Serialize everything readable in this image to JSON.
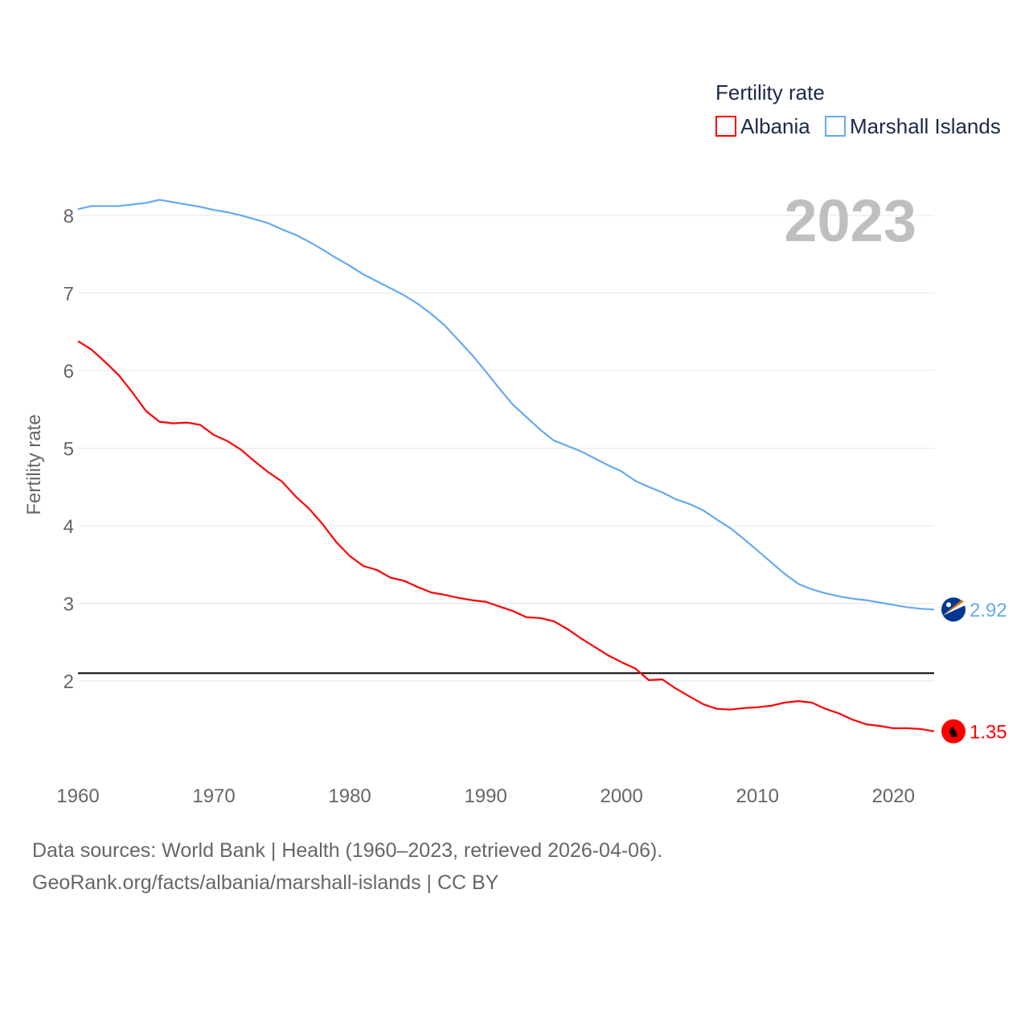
{
  "chart_data": {
    "type": "line",
    "title": "",
    "ylabel": "Fertility rate",
    "xlabel": "",
    "xlim": [
      1960,
      2023
    ],
    "ylim": [
      1,
      8.6
    ],
    "yticks": [
      2,
      3,
      4,
      5,
      6,
      7,
      8
    ],
    "xticks": [
      1960,
      1970,
      1980,
      1990,
      2000,
      2010,
      2020
    ],
    "grid": true,
    "year_label": "2023",
    "legend": {
      "title": "Fertility rate",
      "position": "top-right"
    },
    "reference_line": 2.1,
    "x": [
      1960,
      1961,
      1962,
      1963,
      1964,
      1965,
      1966,
      1967,
      1968,
      1969,
      1970,
      1971,
      1972,
      1973,
      1974,
      1975,
      1976,
      1977,
      1978,
      1979,
      1980,
      1981,
      1982,
      1983,
      1984,
      1985,
      1986,
      1987,
      1988,
      1989,
      1990,
      1991,
      1992,
      1993,
      1994,
      1995,
      1996,
      1997,
      1998,
      1999,
      2000,
      2001,
      2002,
      2003,
      2004,
      2005,
      2006,
      2007,
      2008,
      2009,
      2010,
      2011,
      2012,
      2013,
      2014,
      2015,
      2016,
      2017,
      2018,
      2019,
      2020,
      2021,
      2022,
      2023
    ],
    "series": [
      {
        "name": "Albania",
        "color": "#ff0000",
        "end_label": "1.35",
        "values": [
          6.38,
          6.27,
          6.11,
          5.94,
          5.72,
          5.48,
          5.34,
          5.32,
          5.33,
          5.3,
          5.17,
          5.09,
          4.98,
          4.83,
          4.69,
          4.57,
          4.38,
          4.22,
          4.02,
          3.79,
          3.61,
          3.48,
          3.43,
          3.33,
          3.29,
          3.21,
          3.14,
          3.11,
          3.07,
          3.04,
          3.02,
          2.96,
          2.9,
          2.82,
          2.81,
          2.77,
          2.67,
          2.55,
          2.44,
          2.33,
          2.24,
          2.16,
          2.01,
          2.02,
          1.9,
          1.8,
          1.7,
          1.64,
          1.63,
          1.65,
          1.66,
          1.68,
          1.72,
          1.74,
          1.72,
          1.64,
          1.58,
          1.5,
          1.44,
          1.42,
          1.39,
          1.39,
          1.38,
          1.35
        ]
      },
      {
        "name": "Marshall Islands",
        "color": "#66aaee",
        "end_label": "2.92",
        "values": [
          8.08,
          8.12,
          8.12,
          8.12,
          8.14,
          8.16,
          8.2,
          8.17,
          8.14,
          8.11,
          8.07,
          8.04,
          8.0,
          7.95,
          7.9,
          7.82,
          7.75,
          7.66,
          7.56,
          7.45,
          7.35,
          7.24,
          7.15,
          7.06,
          6.97,
          6.86,
          6.73,
          6.58,
          6.39,
          6.2,
          5.99,
          5.77,
          5.56,
          5.4,
          5.24,
          5.1,
          5.03,
          4.96,
          4.87,
          4.78,
          4.7,
          4.58,
          4.5,
          4.43,
          4.34,
          4.28,
          4.2,
          4.08,
          3.97,
          3.83,
          3.68,
          3.53,
          3.38,
          3.25,
          3.18,
          3.13,
          3.09,
          3.06,
          3.04,
          3.01,
          2.98,
          2.95,
          2.93,
          2.92
        ]
      }
    ]
  },
  "footer": {
    "line1": "Data sources: World Bank | Health (1960–2023, retrieved 2026-04-06).",
    "line2": "GeoRank.org/facts/albania/marshall-islands | CC BY"
  }
}
